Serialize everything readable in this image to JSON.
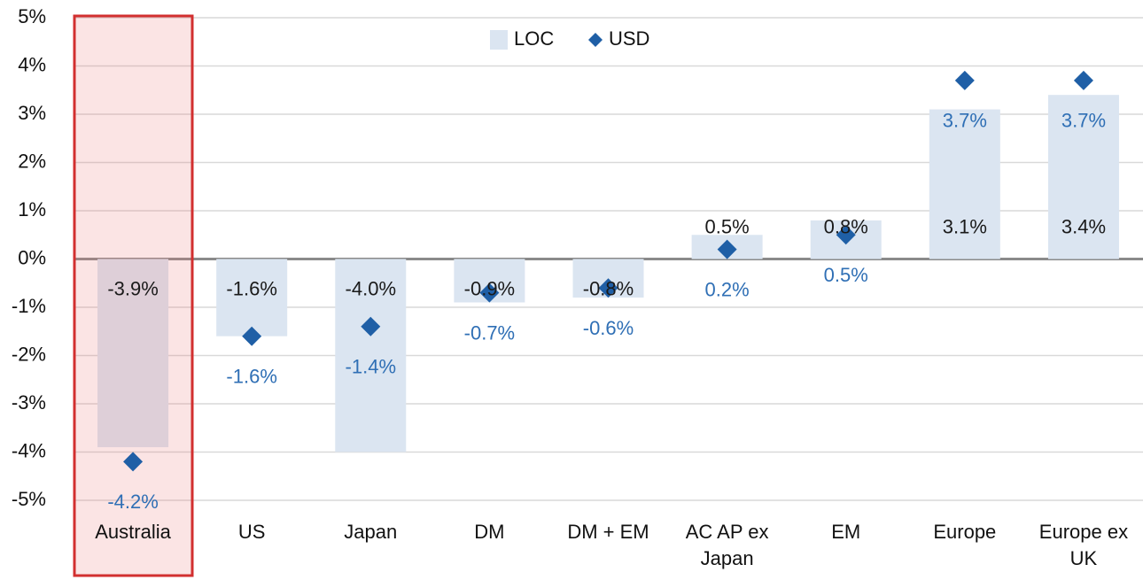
{
  "chart_data": {
    "type": "bar",
    "categories": [
      "Australia",
      "US",
      "Japan",
      "DM",
      "DM + EM",
      "AC AP ex Japan",
      "EM",
      "Europe",
      "Europe ex UK"
    ],
    "series": [
      {
        "name": "LOC",
        "color": "#dbe5f1",
        "values": [
          -3.9,
          -1.6,
          -4.0,
          -0.9,
          -0.8,
          0.5,
          0.8,
          3.1,
          3.4
        ],
        "value_labels": [
          "-3.9%",
          "-1.6%",
          "-4.0%",
          "-0.9%",
          "-0.8%",
          "0.5%",
          "0.8%",
          "3.1%",
          "3.4%"
        ]
      },
      {
        "name": "USD",
        "color": "#1f5fa6",
        "values": [
          -4.2,
          -1.6,
          -1.4,
          -0.7,
          -0.6,
          0.2,
          0.5,
          3.7,
          3.7
        ],
        "value_labels": [
          "-4.2%",
          "-1.6%",
          "-1.4%",
          "-0.7%",
          "-0.6%",
          "0.2%",
          "0.5%",
          "3.7%",
          "3.7%"
        ]
      }
    ],
    "ylim": [
      -5,
      5
    ],
    "yticks": [
      {
        "value": 5,
        "label": "5%"
      },
      {
        "value": 4,
        "label": "4%"
      },
      {
        "value": 3,
        "label": "3%"
      },
      {
        "value": 2,
        "label": "2%"
      },
      {
        "value": 1,
        "label": "1%"
      },
      {
        "value": 0,
        "label": "0%"
      },
      {
        "value": -1,
        "label": "-1%"
      },
      {
        "value": -2,
        "label": "-2%"
      },
      {
        "value": -3,
        "label": "-3%"
      },
      {
        "value": -4,
        "label": "-4%"
      },
      {
        "value": -5,
        "label": "-5%"
      }
    ],
    "grid": true
  }
}
